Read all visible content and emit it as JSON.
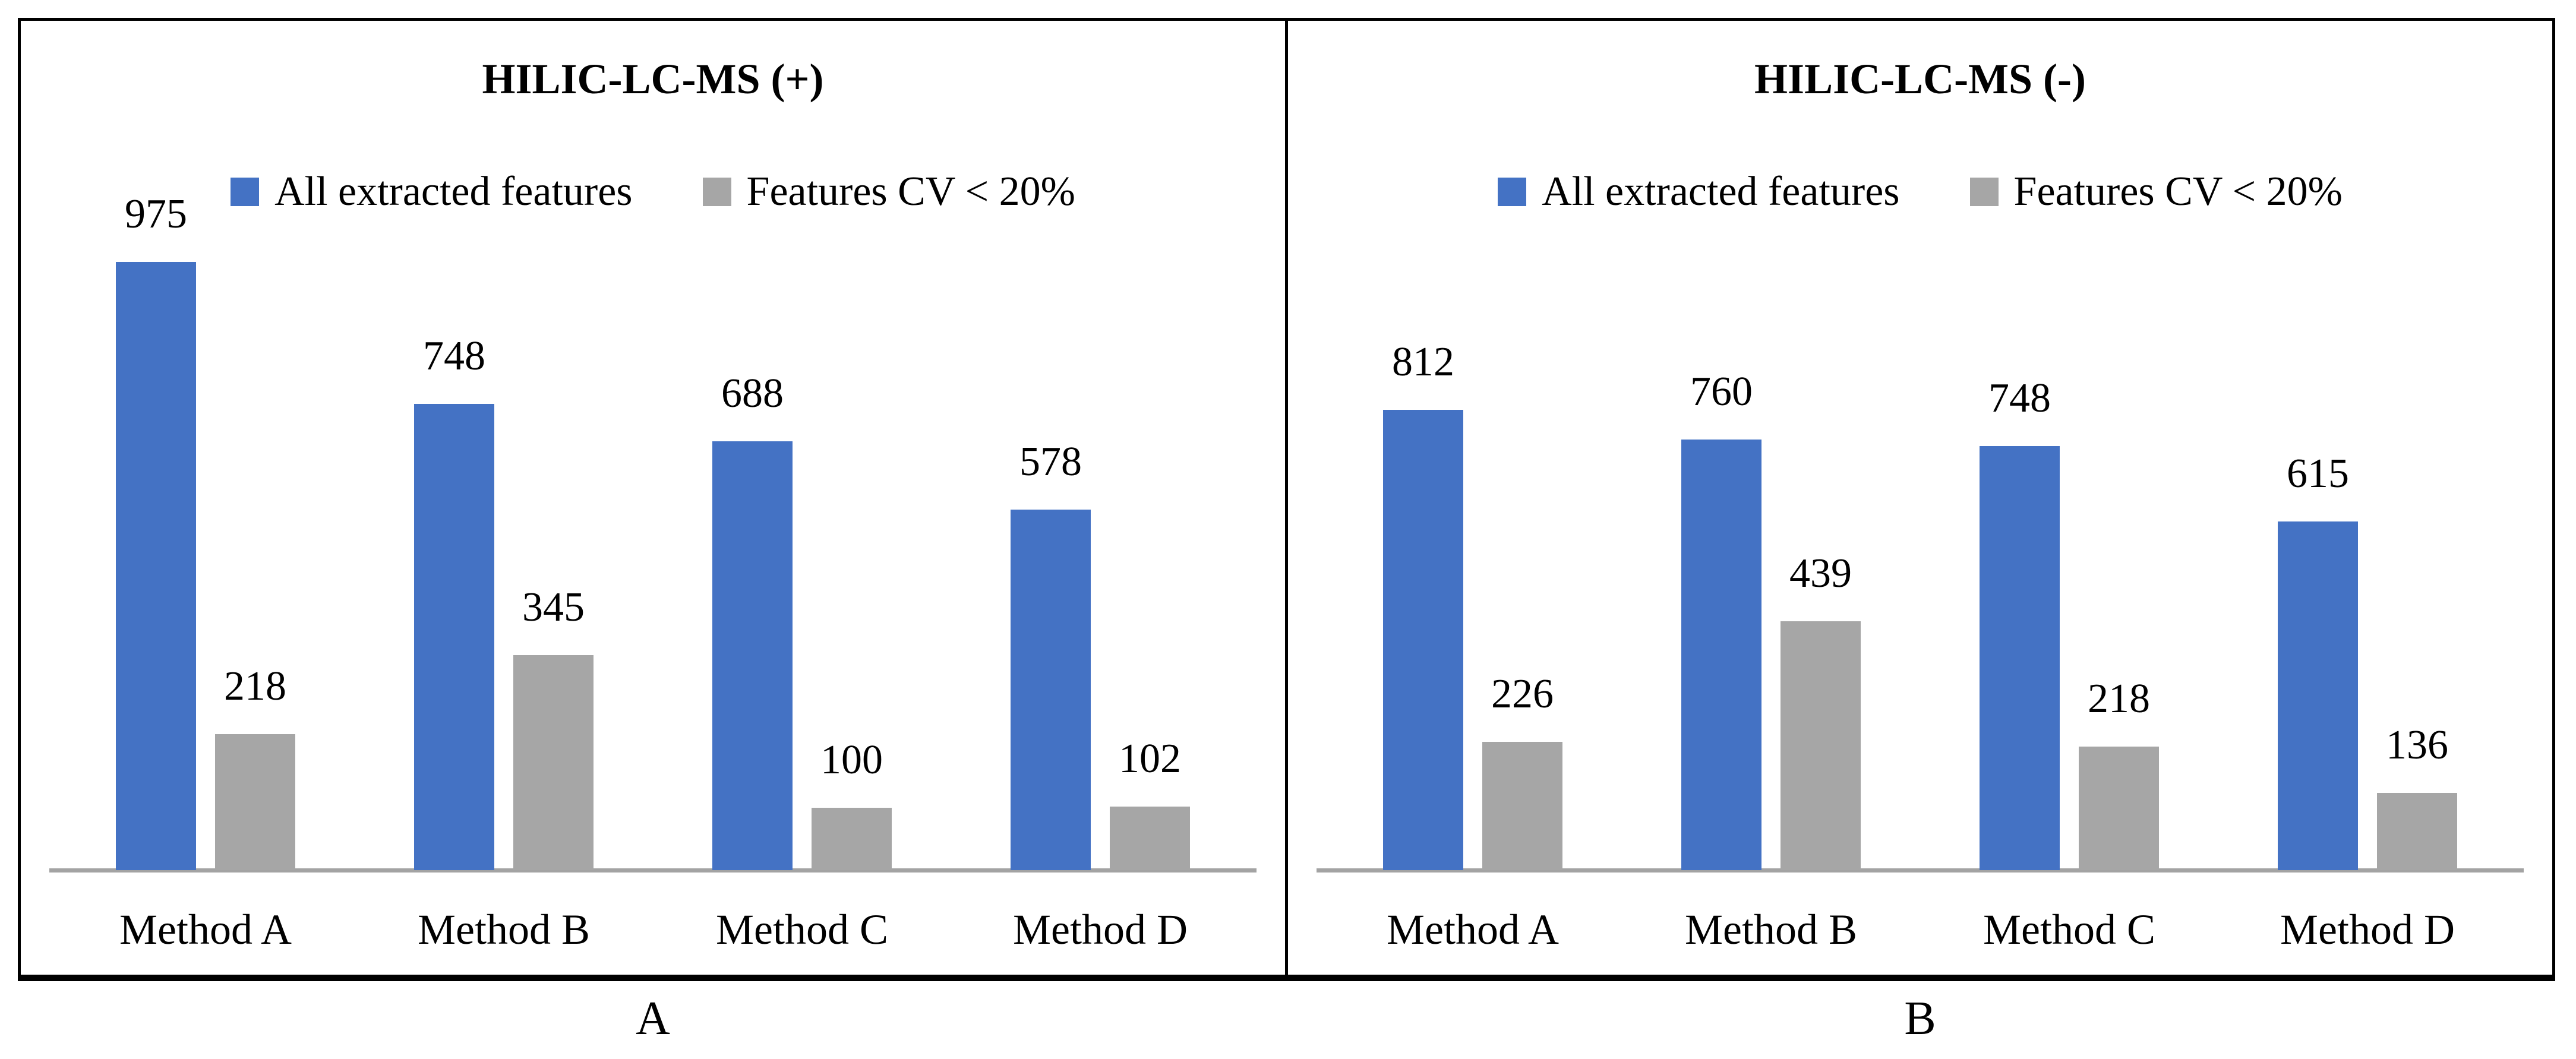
{
  "figure": {
    "panel_labels": [
      "A",
      "B"
    ],
    "background": "#ffffff",
    "border_color": "#000000",
    "axis_line_color": "#A3A3A3"
  },
  "chart_data": [
    {
      "type": "bar",
      "title": "HILIC-LC-MS (+)",
      "categories": [
        "Method A",
        "Method B",
        "Method C",
        "Method D"
      ],
      "series": [
        {
          "name": "All extracted features",
          "color": "#4472C4",
          "values": [
            975,
            748,
            688,
            578
          ]
        },
        {
          "name": "Features CV < 20%",
          "color": "#A6A6A6",
          "values": [
            218,
            345,
            100,
            102
          ]
        }
      ],
      "ylim": [
        0,
        1000
      ],
      "grid": false,
      "legend_position": "top",
      "bar_labels": true
    },
    {
      "type": "bar",
      "title": "HILIC-LC-MS (-)",
      "categories": [
        "Method A",
        "Method B",
        "Method C",
        "Method D"
      ],
      "series": [
        {
          "name": "All extracted features",
          "color": "#4472C4",
          "values": [
            812,
            760,
            748,
            615
          ]
        },
        {
          "name": "Features CV < 20%",
          "color": "#A6A6A6",
          "values": [
            226,
            439,
            218,
            136
          ]
        }
      ],
      "ylim": [
        0,
        1100
      ],
      "grid": false,
      "legend_position": "top",
      "bar_labels": true
    }
  ]
}
